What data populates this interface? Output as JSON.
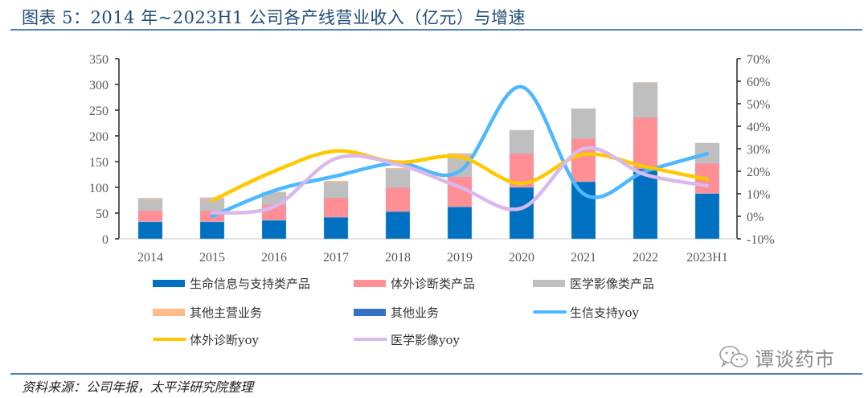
{
  "header": {
    "title": "图表 5：2014 年~2023H1 公司各产线营业收入（亿元）与增速"
  },
  "footer": {
    "source": "资料来源：公司年报，太平洋研究院整理",
    "watermark": "谭谈药市",
    "watermark_icon": "wechat-icon"
  },
  "chart_data": {
    "type": "bar",
    "subtype": "stacked-bar-with-lines",
    "title": "2014 年~2023H1 公司各产线营业收入（亿元）与增速",
    "categories": [
      "2014",
      "2015",
      "2016",
      "2017",
      "2018",
      "2019",
      "2020",
      "2021",
      "2022",
      "2023H1"
    ],
    "left_axis": {
      "ylim": [
        0,
        350
      ],
      "ticks": [
        0,
        50,
        100,
        150,
        200,
        250,
        300,
        350
      ],
      "tick_labels": [
        "0",
        "50",
        "100",
        "150",
        "200",
        "250",
        "300",
        "350"
      ]
    },
    "right_axis": {
      "ylim": [
        -10,
        70
      ],
      "ticks": [
        -10,
        0,
        10,
        20,
        30,
        40,
        50,
        60,
        70
      ],
      "tick_labels": [
        "-10%",
        "0%",
        "10%",
        "20%",
        "30%",
        "40%",
        "50%",
        "60%",
        "70%"
      ]
    },
    "grid": false,
    "legend_position": "bottom",
    "bar_series": [
      {
        "name": "生命信息与支持类产品",
        "color": "#0070c0",
        "values": [
          33,
          33,
          36,
          42,
          53,
          62,
          100,
          111,
          136,
          88
        ]
      },
      {
        "name": "体外诊断类产品",
        "color": "#ff8f95",
        "values": [
          22,
          22,
          30,
          38,
          47,
          59,
          66,
          84,
          100,
          59
        ]
      },
      {
        "name": "医学影像类产品",
        "color": "#bfbfbf",
        "values": [
          21,
          22,
          23,
          29,
          34,
          42,
          45,
          57,
          66,
          39
        ]
      },
      {
        "name": "其他主营业务",
        "color": "#ffbb88",
        "values": [
          3,
          3,
          2,
          3,
          3,
          3,
          0,
          1,
          2,
          0
        ]
      },
      {
        "name": "其他业务",
        "color": "#3472c8",
        "values": [
          0,
          0,
          0,
          0,
          0,
          0,
          0,
          0,
          0,
          0
        ]
      }
    ],
    "line_series": [
      {
        "name": "生信支持yoy",
        "color": "#4db8ff",
        "axis": "right",
        "values": [
          null,
          0,
          11.4,
          17.9,
          23.6,
          20,
          57.5,
          10,
          20,
          27.8
        ]
      },
      {
        "name": "体外诊断yoy",
        "color": "#ffc800",
        "axis": "right",
        "values": [
          null,
          7,
          20,
          29,
          24,
          26.4,
          14.6,
          27.5,
          22,
          16.4
        ]
      },
      {
        "name": "医学影像yoy",
        "color": "#d9b8ec",
        "axis": "right",
        "values": [
          null,
          1.5,
          4.3,
          25.7,
          23,
          13,
          3.6,
          30,
          18.5,
          13.6
        ]
      }
    ],
    "legend": [
      {
        "label": "生命信息与支持类产品",
        "kind": "box",
        "color": "#0070c0"
      },
      {
        "label": "体外诊断类产品",
        "kind": "box",
        "color": "#ff8f95"
      },
      {
        "label": "医学影像类产品",
        "kind": "box",
        "color": "#bfbfbf"
      },
      {
        "label": "其他主营业务",
        "kind": "box",
        "color": "#ffbb88"
      },
      {
        "label": "其他业务",
        "kind": "box",
        "color": "#3472c8"
      },
      {
        "label": "生信支持yoy",
        "kind": "line",
        "color": "#4db8ff"
      },
      {
        "label": "体外诊断yoy",
        "kind": "line",
        "color": "#ffc800"
      },
      {
        "label": "医学影像yoy",
        "kind": "line",
        "color": "#d9b8ec"
      }
    ]
  }
}
